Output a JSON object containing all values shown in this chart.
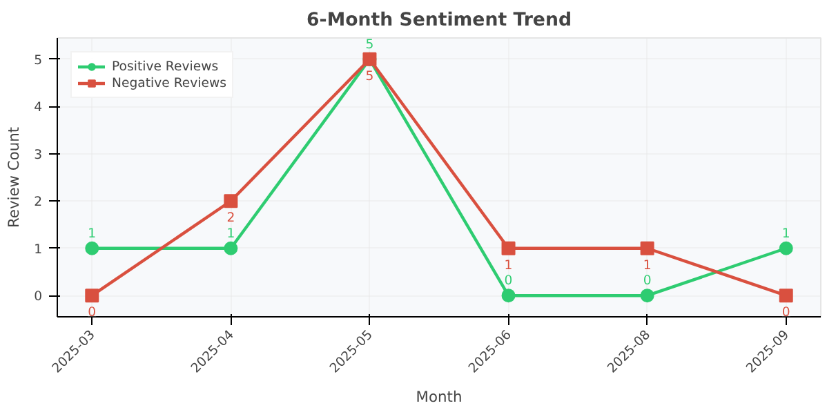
{
  "chart_data": {
    "type": "line",
    "title": "6-Month Sentiment Trend",
    "xlabel": "Month",
    "ylabel": "Review Count",
    "categories": [
      "2025-03",
      "2025-04",
      "2025-05",
      "2025-06",
      "2025-08",
      "2025-09"
    ],
    "series": [
      {
        "name": "Positive Reviews",
        "color": "#2ecc71",
        "marker": "circle",
        "values": [
          1,
          1,
          5,
          0,
          0,
          1
        ]
      },
      {
        "name": "Negative Reviews",
        "color": "#d9503f",
        "marker": "square",
        "values": [
          0,
          2,
          5,
          1,
          1,
          0
        ]
      }
    ],
    "ylim": [
      -0.45,
      5.45
    ],
    "yticks": [
      0,
      1,
      2,
      3,
      4,
      5
    ],
    "grid": true,
    "legend": "top left",
    "data_labels": true,
    "line_style": "solid"
  }
}
